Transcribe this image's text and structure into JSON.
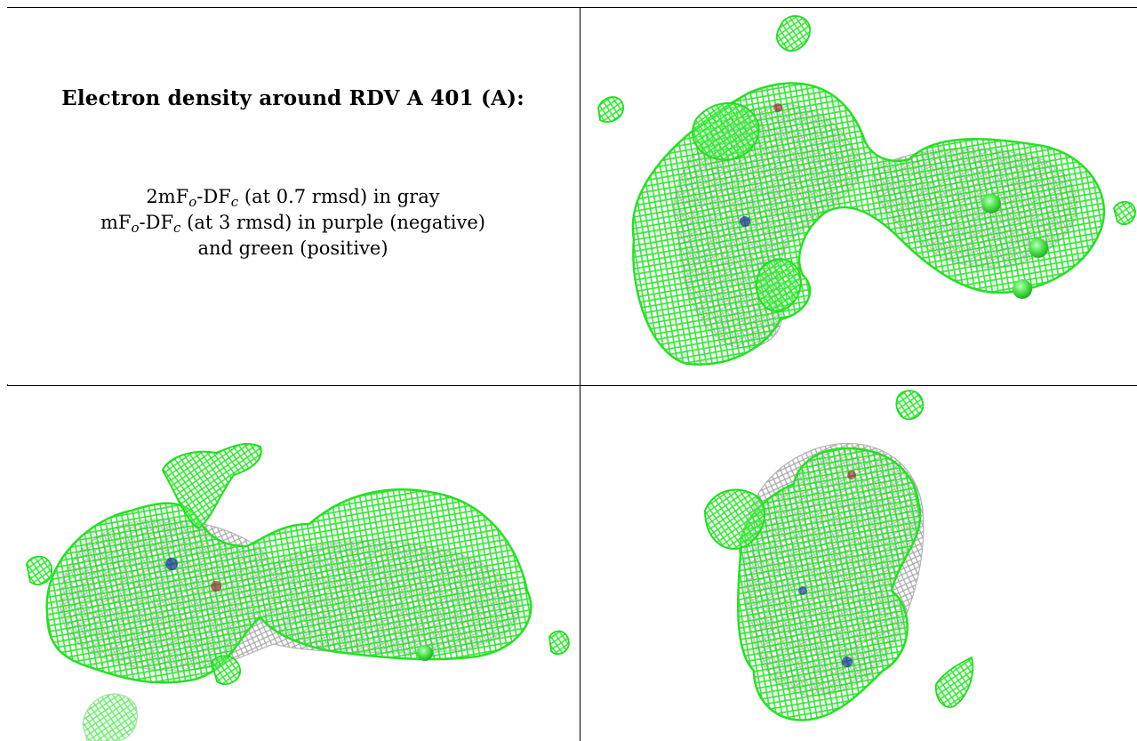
{
  "caption": {
    "title": "Electron density around RDV A 401 (A):",
    "map1": {
      "prefix": "2mF",
      "sub1": "o",
      "mid": "-DF",
      "sub2": "c",
      "suffix": " (at 0.7 rmsd) in gray"
    },
    "map2": {
      "prefix": "mF",
      "sub1": "o",
      "mid": "-DF",
      "sub2": "c",
      "suffix": " (at 3 rmsd) in purple (negative)"
    },
    "map2_cont": "and green (positive)"
  },
  "colors": {
    "positive_density": "#33ff33",
    "positive_outline": "#1fd01f",
    "twofofc_density": "#9a9a9a",
    "negative_density": "#7a3b8f",
    "atom_blue": "#1c2c9c",
    "atom_red": "#a3102a",
    "atom_green_sphere": "#55e555"
  },
  "views": [
    {
      "name": "view-top-right",
      "icon": "electron-density-mesh-icon"
    },
    {
      "name": "view-bottom-left",
      "icon": "electron-density-mesh-icon"
    },
    {
      "name": "view-bottom-right",
      "icon": "electron-density-mesh-icon"
    }
  ]
}
